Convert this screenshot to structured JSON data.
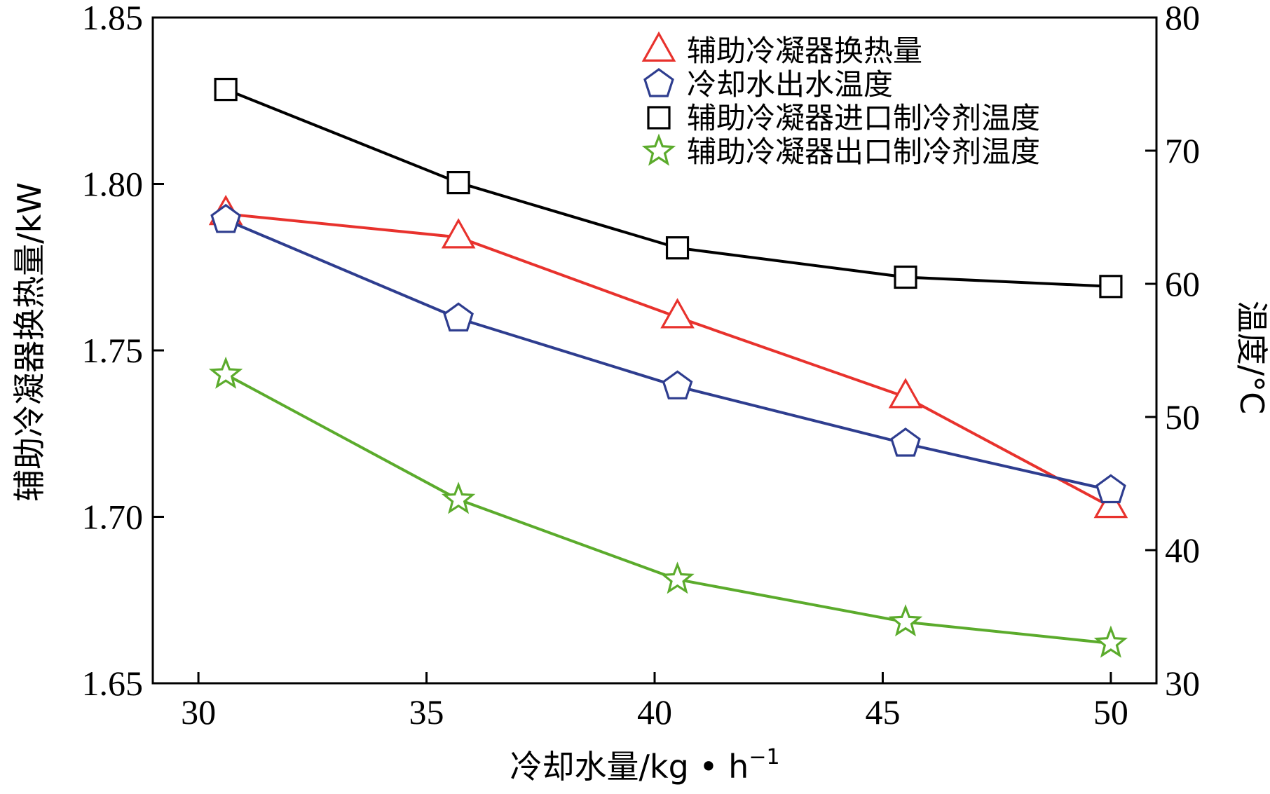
{
  "chart_data": {
    "type": "line",
    "title": "",
    "xlabel": "冷却水量/kg • h",
    "xlabel_sup": "−1",
    "ylabel_left": "辅助冷凝器换热量/kW",
    "ylabel_right": "温度/°C",
    "xlim": [
      29,
      51
    ],
    "ylim_left": [
      1.65,
      1.85
    ],
    "ylim_right": [
      30,
      80
    ],
    "xticks": [
      "30",
      "35",
      "40",
      "45",
      "50"
    ],
    "yticks_left": [
      "1.65",
      "1.70",
      "1.75",
      "1.80",
      "1.85"
    ],
    "yticks_right": [
      "30",
      "40",
      "50",
      "60",
      "70",
      "80"
    ],
    "grid": false,
    "legend_position": "top-right",
    "series": [
      {
        "name": "辅助冷凝器换热量",
        "axis": "left",
        "color": "#e8322d",
        "marker": "triangle",
        "x": [
          30.6,
          35.7,
          40.5,
          45.5,
          50
        ],
        "y": [
          1.791,
          1.784,
          1.76,
          1.736,
          1.703
        ]
      },
      {
        "name": "冷却水出水温度",
        "axis": "right",
        "color": "#2e3d8f",
        "marker": "pentagon",
        "x": [
          30.6,
          35.7,
          40.5,
          45.5,
          50
        ],
        "y": [
          64.8,
          57.4,
          52.3,
          48.0,
          44.5
        ]
      },
      {
        "name": "辅助冷凝器进口制冷剂温度",
        "axis": "right",
        "color": "#000000",
        "marker": "square",
        "x": [
          30.6,
          35.7,
          40.5,
          45.5,
          50
        ],
        "y": [
          74.6,
          67.6,
          62.7,
          60.5,
          59.8
        ]
      },
      {
        "name": "辅助冷凝器出口制冷剂温度",
        "axis": "right",
        "color": "#5bab2c",
        "marker": "star",
        "x": [
          30.6,
          35.7,
          40.5,
          45.5,
          50
        ],
        "y": [
          53.2,
          43.8,
          37.8,
          34.6,
          33.0
        ]
      }
    ]
  }
}
